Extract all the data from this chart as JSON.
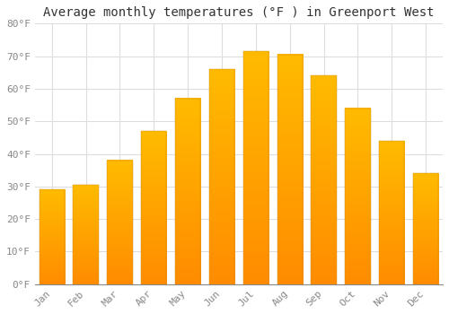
{
  "title": "Average monthly temperatures (°F ) in Greenport West",
  "months": [
    "Jan",
    "Feb",
    "Mar",
    "Apr",
    "May",
    "Jun",
    "Jul",
    "Aug",
    "Sep",
    "Oct",
    "Nov",
    "Dec"
  ],
  "values": [
    29,
    30.5,
    38,
    47,
    57,
    66,
    71.5,
    70.5,
    64,
    54,
    44,
    34
  ],
  "bar_color_top": "#FFBB00",
  "bar_color_bottom": "#FF8C00",
  "ylim": [
    0,
    80
  ],
  "yticks": [
    0,
    10,
    20,
    30,
    40,
    50,
    60,
    70,
    80
  ],
  "ytick_labels": [
    "0°F",
    "10°F",
    "20°F",
    "30°F",
    "40°F",
    "50°F",
    "60°F",
    "70°F",
    "80°F"
  ],
  "background_color": "#FFFFFF",
  "grid_color": "#DDDDDD",
  "title_fontsize": 10,
  "tick_fontsize": 8,
  "font_family": "monospace",
  "tick_color": "#888888"
}
